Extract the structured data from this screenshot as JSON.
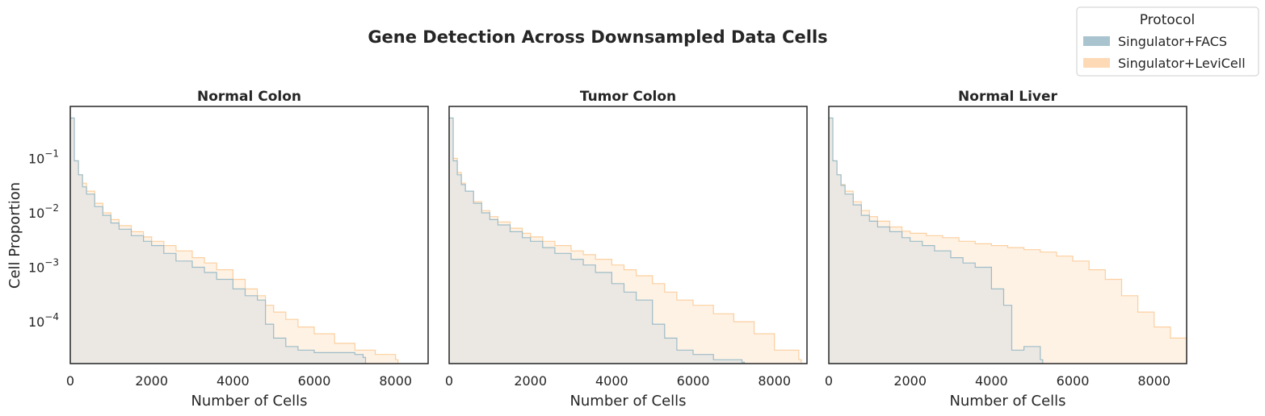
{
  "chart_data": {
    "type": "histogram",
    "title": "Gene Detection Across Downsampled Data Cells",
    "ylabel": "Cell Proportion",
    "yscale": "log",
    "ylim": [
      1.7e-05,
      0.9
    ],
    "ytick_values": [
      0.1,
      0.01,
      0.001,
      0.0001
    ],
    "ytick_labels": [
      {
        "base": "10",
        "exp": "−1"
      },
      {
        "base": "10",
        "exp": "−2"
      },
      {
        "base": "10",
        "exp": "−3"
      },
      {
        "base": "10",
        "exp": "−4"
      }
    ],
    "xticks": [
      "0",
      "2000",
      "4000",
      "6000",
      "8000"
    ],
    "legend": {
      "title": "Protocol",
      "position": "top-right",
      "entries": [
        "Singulator+FACS",
        "Singulator+LeviCell"
      ]
    },
    "colors": {
      "facs_fill": "#a9c4cf",
      "facs_line": "#9dbcc7",
      "levicell_fill": "#fdd9b5",
      "levicell_line": "#fbcf9f",
      "overlap_fill": "#e9e7e3"
    },
    "panels": [
      {
        "title": "Normal Colon",
        "xlabel": "Number of Cells",
        "xlim": [
          0,
          8800
        ],
        "series": [
          {
            "name": "Singulator+FACS",
            "points": [
              [
                0,
                0.55
              ],
              [
                100,
                0.09
              ],
              [
                200,
                0.05
              ],
              [
                300,
                0.03
              ],
              [
                400,
                0.022
              ],
              [
                600,
                0.013
              ],
              [
                800,
                0.009
              ],
              [
                1000,
                0.0065
              ],
              [
                1200,
                0.005
              ],
              [
                1500,
                0.0038
              ],
              [
                1800,
                0.003
              ],
              [
                2000,
                0.0025
              ],
              [
                2300,
                0.0018
              ],
              [
                2600,
                0.0013
              ],
              [
                3000,
                0.001
              ],
              [
                3300,
                0.0008
              ],
              [
                3600,
                0.0006
              ],
              [
                4000,
                0.0004
              ],
              [
                4300,
                0.0003
              ],
              [
                4600,
                0.00025
              ],
              [
                4800,
                9e-05
              ],
              [
                5000,
                5e-05
              ],
              [
                5300,
                3.5e-05
              ],
              [
                5600,
                3e-05
              ],
              [
                6000,
                2.7e-05
              ],
              [
                7000,
                2.5e-05
              ],
              [
                7200,
                2.2e-05
              ]
            ]
          },
          {
            "name": "Singulator+LeviCell",
            "points": [
              [
                0,
                0.5
              ],
              [
                100,
                0.09
              ],
              [
                200,
                0.05
              ],
              [
                300,
                0.035
              ],
              [
                400,
                0.025
              ],
              [
                600,
                0.015
              ],
              [
                800,
                0.01
              ],
              [
                1000,
                0.0075
              ],
              [
                1200,
                0.0058
              ],
              [
                1500,
                0.0045
              ],
              [
                1800,
                0.0036
              ],
              [
                2000,
                0.003
              ],
              [
                2300,
                0.0025
              ],
              [
                2600,
                0.002
              ],
              [
                3000,
                0.0015
              ],
              [
                3300,
                0.0012
              ],
              [
                3600,
                0.0009
              ],
              [
                4000,
                0.0006
              ],
              [
                4300,
                0.0004
              ],
              [
                4600,
                0.0003
              ],
              [
                4800,
                0.0002
              ],
              [
                5000,
                0.00015
              ],
              [
                5300,
                0.00011
              ],
              [
                5600,
                8e-05
              ],
              [
                6000,
                6e-05
              ],
              [
                6500,
                4e-05
              ],
              [
                7000,
                3e-05
              ],
              [
                7500,
                2.5e-05
              ],
              [
                8000,
                2e-05
              ]
            ]
          }
        ]
      },
      {
        "title": "Tumor Colon",
        "xlabel": "Number of Cells",
        "xlim": [
          0,
          8800
        ],
        "series": [
          {
            "name": "Singulator+FACS",
            "points": [
              [
                0,
                0.55
              ],
              [
                100,
                0.09
              ],
              [
                200,
                0.05
              ],
              [
                300,
                0.033
              ],
              [
                400,
                0.025
              ],
              [
                600,
                0.015
              ],
              [
                800,
                0.01
              ],
              [
                1000,
                0.0075
              ],
              [
                1200,
                0.006
              ],
              [
                1500,
                0.0045
              ],
              [
                1800,
                0.0035
              ],
              [
                2000,
                0.003
              ],
              [
                2300,
                0.0023
              ],
              [
                2600,
                0.0018
              ],
              [
                3000,
                0.0014
              ],
              [
                3300,
                0.0011
              ],
              [
                3600,
                0.0008
              ],
              [
                4000,
                0.0005
              ],
              [
                4300,
                0.00035
              ],
              [
                4600,
                0.00025
              ],
              [
                5000,
                9e-05
              ],
              [
                5300,
                5e-05
              ],
              [
                5600,
                3e-05
              ],
              [
                6000,
                2.5e-05
              ],
              [
                6500,
                2e-05
              ],
              [
                7200,
                1.8e-05
              ]
            ]
          },
          {
            "name": "Singulator+LeviCell",
            "points": [
              [
                0,
                0.5
              ],
              [
                100,
                0.1
              ],
              [
                200,
                0.055
              ],
              [
                300,
                0.035
              ],
              [
                400,
                0.025
              ],
              [
                600,
                0.016
              ],
              [
                800,
                0.011
              ],
              [
                1000,
                0.0085
              ],
              [
                1200,
                0.0068
              ],
              [
                1500,
                0.0052
              ],
              [
                1800,
                0.0042
              ],
              [
                2000,
                0.0036
              ],
              [
                2300,
                0.003
              ],
              [
                2600,
                0.0025
              ],
              [
                3000,
                0.002
              ],
              [
                3300,
                0.0017
              ],
              [
                3600,
                0.0014
              ],
              [
                4000,
                0.0011
              ],
              [
                4300,
                0.0009
              ],
              [
                4600,
                0.0007
              ],
              [
                5000,
                0.0005
              ],
              [
                5300,
                0.00035
              ],
              [
                5600,
                0.00025
              ],
              [
                6000,
                0.0002
              ],
              [
                6500,
                0.00014
              ],
              [
                7000,
                0.0001
              ],
              [
                7500,
                6e-05
              ],
              [
                8000,
                3e-05
              ],
              [
                8600,
                2e-05
              ]
            ]
          }
        ]
      },
      {
        "title": "Normal Liver",
        "xlabel": "Number of Cells",
        "xlim": [
          0,
          8800
        ],
        "series": [
          {
            "name": "Singulator+FACS",
            "points": [
              [
                0,
                0.55
              ],
              [
                100,
                0.09
              ],
              [
                200,
                0.05
              ],
              [
                300,
                0.032
              ],
              [
                400,
                0.022
              ],
              [
                600,
                0.014
              ],
              [
                800,
                0.009
              ],
              [
                1000,
                0.007
              ],
              [
                1200,
                0.0055
              ],
              [
                1500,
                0.0045
              ],
              [
                1800,
                0.0035
              ],
              [
                2000,
                0.003
              ],
              [
                2300,
                0.0025
              ],
              [
                2600,
                0.002
              ],
              [
                3000,
                0.0015
              ],
              [
                3300,
                0.0012
              ],
              [
                3600,
                0.001
              ],
              [
                4000,
                0.0004
              ],
              [
                4300,
                0.0002
              ],
              [
                4500,
                3e-05
              ],
              [
                4800,
                3.5e-05
              ],
              [
                5200,
                2e-05
              ]
            ]
          },
          {
            "name": "Singulator+LeviCell",
            "points": [
              [
                0,
                0.5
              ],
              [
                100,
                0.09
              ],
              [
                200,
                0.05
              ],
              [
                300,
                0.033
              ],
              [
                400,
                0.025
              ],
              [
                600,
                0.016
              ],
              [
                800,
                0.011
              ],
              [
                1000,
                0.0085
              ],
              [
                1200,
                0.007
              ],
              [
                1500,
                0.0055
              ],
              [
                1800,
                0.0046
              ],
              [
                2000,
                0.0042
              ],
              [
                2400,
                0.0038
              ],
              [
                2800,
                0.0035
              ],
              [
                3200,
                0.003
              ],
              [
                3600,
                0.0027
              ],
              [
                4000,
                0.0025
              ],
              [
                4400,
                0.0023
              ],
              [
                4800,
                0.0021
              ],
              [
                5200,
                0.0019
              ],
              [
                5600,
                0.0016
              ],
              [
                6000,
                0.0013
              ],
              [
                6400,
                0.0009
              ],
              [
                6800,
                0.0006
              ],
              [
                7200,
                0.0003
              ],
              [
                7600,
                0.00015
              ],
              [
                8000,
                8e-05
              ],
              [
                8400,
                5e-05
              ],
              [
                8800,
                4e-05
              ]
            ]
          }
        ]
      }
    ]
  }
}
